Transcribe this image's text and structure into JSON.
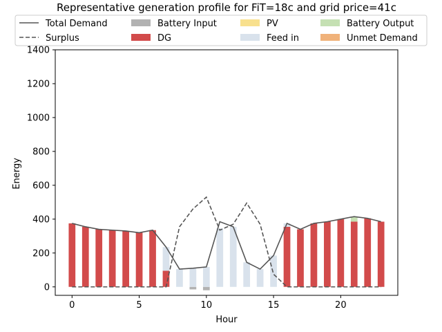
{
  "chart_data": {
    "type": "bar",
    "title": "Representative generation profile for FiT=18c and grid price=41c",
    "xlabel": "Hour",
    "ylabel": "Energy",
    "xlim": [
      -1.25,
      24.25
    ],
    "ylim": [
      -50,
      1400
    ],
    "xticks": [
      0,
      5,
      10,
      15,
      20
    ],
    "yticks": [
      0,
      200,
      400,
      600,
      800,
      1000,
      1200,
      1400
    ],
    "legend_position": "top",
    "x": [
      0,
      1,
      2,
      3,
      4,
      5,
      6,
      7,
      8,
      9,
      10,
      11,
      12,
      13,
      14,
      15,
      16,
      17,
      18,
      19,
      20,
      21,
      22,
      23
    ],
    "lines": [
      {
        "name": "Total Demand",
        "style": "solid",
        "color": "#555555",
        "values": [
          375,
          355,
          340,
          335,
          330,
          320,
          335,
          235,
          105,
          110,
          118,
          385,
          355,
          145,
          105,
          185,
          375,
          340,
          375,
          385,
          400,
          415,
          405,
          385
        ]
      },
      {
        "name": "Surplus",
        "style": "dashed",
        "color": "#555555",
        "values": [
          0,
          0,
          0,
          0,
          0,
          0,
          0,
          0,
          355,
          460,
          530,
          335,
          370,
          495,
          370,
          75,
          0,
          0,
          0,
          0,
          0,
          0,
          0,
          0
        ]
      }
    ],
    "series": [
      {
        "name": "Battery Input",
        "color": "#b2b2b2",
        "values": [
          0,
          0,
          0,
          0,
          0,
          0,
          0,
          0,
          0,
          -15,
          -20,
          0,
          0,
          0,
          0,
          0,
          0,
          0,
          0,
          0,
          0,
          0,
          0,
          0
        ]
      },
      {
        "name": "DG",
        "color": "#d24b4b",
        "values": [
          375,
          355,
          340,
          335,
          330,
          320,
          335,
          95,
          0,
          0,
          0,
          0,
          0,
          0,
          0,
          0,
          355,
          340,
          375,
          385,
          400,
          385,
          405,
          385
        ]
      },
      {
        "name": "PV",
        "color": "#f8e08e",
        "values": [
          0,
          0,
          0,
          0,
          0,
          0,
          0,
          0,
          0,
          0,
          0,
          0,
          0,
          0,
          0,
          0,
          0,
          0,
          0,
          0,
          0,
          0,
          0,
          0
        ]
      },
      {
        "name": "Feed in",
        "color": "#d9e2ec",
        "values": [
          0,
          0,
          0,
          0,
          0,
          0,
          0,
          140,
          105,
          110,
          118,
          345,
          355,
          145,
          105,
          185,
          20,
          0,
          0,
          0,
          0,
          0,
          0,
          0
        ]
      },
      {
        "name": "Battery Output",
        "color": "#c5e0b3",
        "values": [
          0,
          0,
          0,
          0,
          0,
          0,
          0,
          0,
          0,
          0,
          0,
          0,
          0,
          0,
          0,
          0,
          0,
          0,
          0,
          0,
          0,
          30,
          0,
          0
        ]
      },
      {
        "name": "Unmet Demand",
        "color": "#f0b27a",
        "values": [
          0,
          0,
          0,
          0,
          0,
          0,
          0,
          0,
          0,
          0,
          0,
          0,
          0,
          0,
          0,
          0,
          0,
          0,
          0,
          0,
          0,
          0,
          0,
          0
        ]
      }
    ]
  }
}
